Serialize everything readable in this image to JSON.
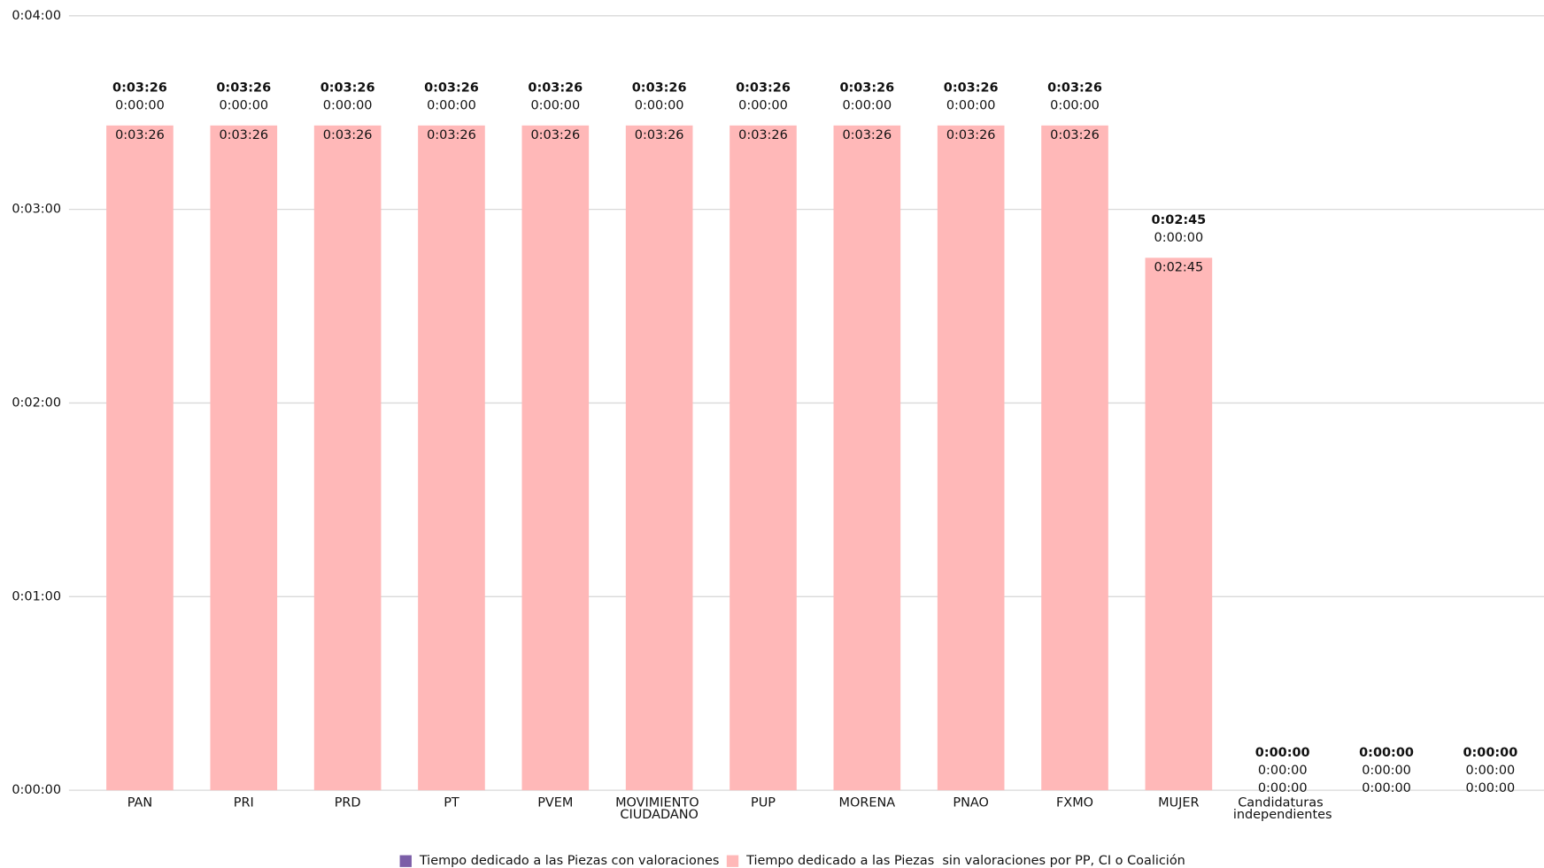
{
  "chart_data": {
    "type": "stacked_bar",
    "categories": [
      "PAN",
      "PRI",
      "PRD",
      "PT",
      "PVEM",
      "MOVIMIENTO CIUDADANO",
      "PUP",
      "MORENA",
      "PNAO",
      "FXMO",
      "MUJER",
      "Candidaturas independientes",
      null,
      null
    ],
    "series": [
      {
        "name": "Tiempo dedicado a las Piezas con valoraciones",
        "color": "#7b5ea7",
        "values": [
          0,
          0,
          0,
          0,
          0,
          0,
          0,
          0,
          0,
          0,
          0,
          0,
          0,
          0
        ],
        "value_labels": [
          "0:00:00",
          "0:00:00",
          "0:00:00",
          "0:00:00",
          "0:00:00",
          "0:00:00",
          "0:00:00",
          "0:00:00",
          "0:00:00",
          "0:00:00",
          "0:00:00",
          "0:00:00",
          "0:00:00",
          "0:00:00"
        ]
      },
      {
        "name": "Tiempo dedicado a las Piezas  sin valoraciones por PP, CI o Coalición",
        "color": "#ffb8b8",
        "values": [
          206,
          206,
          206,
          206,
          206,
          206,
          206,
          206,
          206,
          206,
          165,
          0,
          0,
          0
        ],
        "value_labels": [
          "0:03:26",
          "0:03:26",
          "0:03:26",
          "0:03:26",
          "0:03:26",
          "0:03:26",
          "0:03:26",
          "0:03:26",
          "0:03:26",
          "0:03:26",
          "0:02:45",
          "0:00:00",
          "0:00:00",
          "0:00:00"
        ]
      }
    ],
    "totals": [
      206,
      206,
      206,
      206,
      206,
      206,
      206,
      206,
      206,
      206,
      165,
      0,
      0,
      0
    ],
    "total_labels": [
      "0:03:26",
      "0:03:26",
      "0:03:26",
      "0:03:26",
      "0:03:26",
      "0:03:26",
      "0:03:26",
      "0:03:26",
      "0:03:26",
      "0:03:26",
      "0:02:45",
      "0:00:00",
      "0:00:00",
      "0:00:00"
    ],
    "ylim": [
      0,
      240
    ],
    "yticks": [
      {
        "value": 0,
        "label": "0:00:00"
      },
      {
        "value": 60,
        "label": "0:01:00"
      },
      {
        "value": 120,
        "label": "0:02:00"
      },
      {
        "value": 180,
        "label": "0:03:00"
      },
      {
        "value": 240,
        "label": "0:04:00"
      }
    ],
    "grid": true,
    "legend": "bottom"
  }
}
